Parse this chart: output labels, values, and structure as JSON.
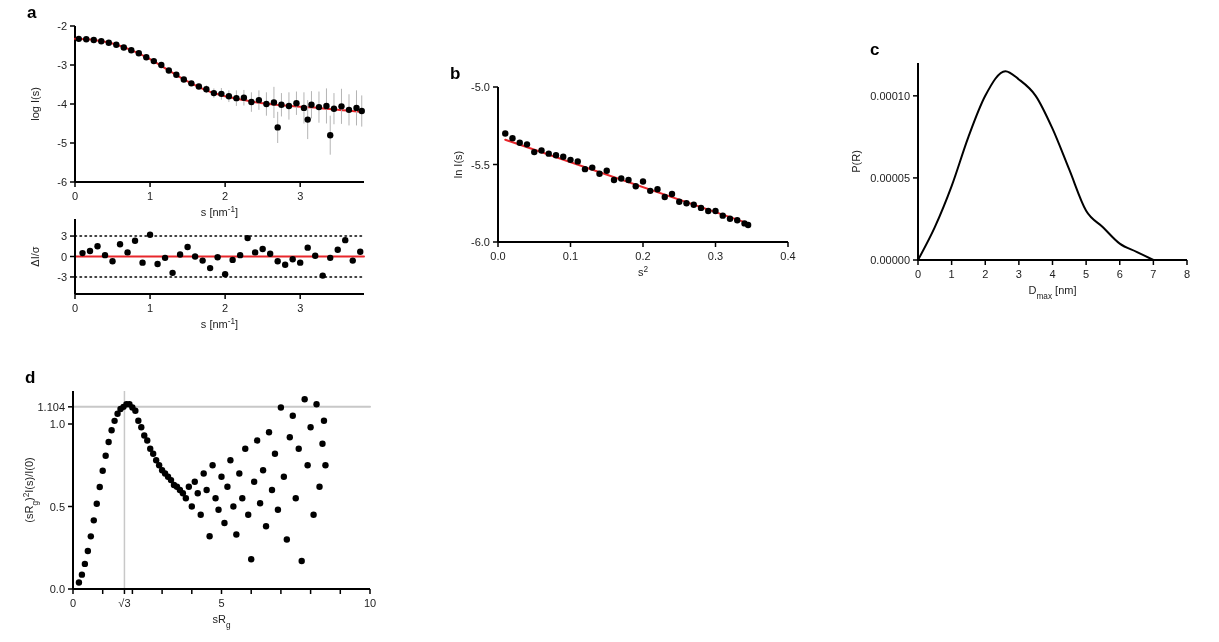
{
  "chart_data": [
    {
      "type": "scatter",
      "title": "a",
      "ylabel": "log I(s)",
      "xlabel": "s [nm$^{-1}$]",
      "xlim": [
        0,
        3.85
      ],
      "xticks": [
        0,
        1,
        2,
        3
      ],
      "ylim": [
        -6,
        -2
      ],
      "yticks": [
        -2,
        -3,
        -4,
        -5,
        -6
      ],
      "series": [
        {
          "marker": "circle",
          "color": "#000000",
          "x": [
            0.05,
            0.15,
            0.25,
            0.35,
            0.45,
            0.55,
            0.65,
            0.75,
            0.85,
            0.95,
            1.05,
            1.15,
            1.25,
            1.35,
            1.45,
            1.55,
            1.65,
            1.75,
            1.85,
            1.95,
            2.05,
            2.15,
            2.25,
            2.35,
            2.45,
            2.55,
            2.65,
            2.7,
            2.75,
            2.85,
            2.95,
            3.05,
            3.1,
            3.15,
            3.25,
            3.35,
            3.4,
            3.45,
            3.55,
            3.65,
            3.75,
            3.82
          ],
          "values": [
            -2.33,
            -2.34,
            -2.36,
            -2.39,
            -2.43,
            -2.48,
            -2.55,
            -2.62,
            -2.7,
            -2.8,
            -2.9,
            -3.0,
            -3.14,
            -3.25,
            -3.37,
            -3.47,
            -3.55,
            -3.62,
            -3.72,
            -3.74,
            -3.8,
            -3.85,
            -3.84,
            -3.95,
            -3.9,
            -4.0,
            -3.96,
            -4.6,
            -4.02,
            -4.05,
            -3.98,
            -4.1,
            -4.4,
            -4.02,
            -4.08,
            -4.05,
            -4.8,
            -4.12,
            -4.06,
            -4.15,
            -4.1,
            -4.18
          ],
          "errors": [
            null,
            null,
            null,
            null,
            null,
            null,
            null,
            null,
            null,
            null,
            null,
            null,
            null,
            null,
            null,
            null,
            null,
            0.1,
            0.12,
            0.15,
            0.15,
            0.2,
            0.2,
            0.25,
            0.25,
            0.3,
            0.4,
            0.4,
            0.3,
            0.35,
            0.3,
            0.4,
            0.5,
            0.35,
            0.4,
            0.45,
            0.5,
            0.4,
            0.45,
            0.4,
            0.45,
            0.4
          ]
        },
        {
          "type": "line",
          "marker": "none",
          "color": "#e8262b",
          "x": [
            0,
            0.25,
            0.5,
            0.75,
            1,
            1.25,
            1.5,
            1.75,
            2,
            2.25,
            2.5,
            2.75,
            3,
            3.25,
            3.5,
            3.82
          ],
          "values": [
            -2.33,
            -2.36,
            -2.45,
            -2.62,
            -2.85,
            -3.14,
            -3.42,
            -3.65,
            -3.8,
            -3.9,
            -3.98,
            -4.03,
            -4.07,
            -4.1,
            -4.15,
            -4.2
          ]
        }
      ]
    },
    {
      "type": "scatter",
      "ylabel": "ΔI/σ",
      "xlabel": "s [nm$^{-1}$]",
      "xlim": [
        0,
        3.85
      ],
      "xticks": [
        0,
        1,
        2,
        3
      ],
      "ylim": [
        -5.5,
        5.5
      ],
      "yticks": [
        3,
        0,
        -3
      ],
      "ref_lines": [
        {
          "axis": "y",
          "value": 3,
          "color": "#000000",
          "line_style": "dotted"
        },
        {
          "axis": "y",
          "value": -3,
          "color": "#000000",
          "line_style": "dotted"
        },
        {
          "axis": "y",
          "value": 0,
          "color": "#e8262b",
          "line_style": "solid"
        }
      ],
      "series": [
        {
          "marker": "circle",
          "color": "#000000",
          "x": [
            0.1,
            0.2,
            0.3,
            0.4,
            0.5,
            0.6,
            0.7,
            0.8,
            0.9,
            1.0,
            1.1,
            1.2,
            1.3,
            1.4,
            1.5,
            1.6,
            1.7,
            1.8,
            1.9,
            2.0,
            2.1,
            2.2,
            2.3,
            2.4,
            2.5,
            2.6,
            2.7,
            2.8,
            2.9,
            3.0,
            3.1,
            3.2,
            3.3,
            3.4,
            3.5,
            3.6,
            3.7,
            3.8
          ],
          "values": [
            0.5,
            0.8,
            1.5,
            0.2,
            -0.7,
            1.8,
            0.6,
            2.3,
            -0.9,
            3.2,
            -1.1,
            -0.2,
            -2.4,
            0.3,
            1.4,
            0.0,
            -0.6,
            -1.7,
            -0.1,
            -2.6,
            -0.5,
            0.2,
            2.7,
            0.6,
            1.1,
            0.4,
            -0.7,
            -1.2,
            -0.4,
            -0.9,
            1.3,
            0.1,
            -2.8,
            -0.2,
            1.0,
            2.4,
            -0.6,
            0.7
          ]
        }
      ]
    },
    {
      "type": "scatter",
      "title": "b",
      "ylabel": "ln I(s)",
      "xlabel": "s$^{2}$",
      "xlim": [
        0,
        0.4
      ],
      "xticks": [
        {
          "value": 0,
          "label": "0.0"
        },
        0.1,
        0.2,
        0.3,
        0.4
      ],
      "ylim": [
        -6,
        -5
      ],
      "yticks": [
        {
          "value": -5,
          "label": "-5.0"
        },
        -5.5,
        {
          "value": -6,
          "label": "-6.0"
        }
      ],
      "series": [
        {
          "marker": "circle",
          "color": "#000000",
          "x": [
            0.01,
            0.02,
            0.03,
            0.04,
            0.05,
            0.06,
            0.07,
            0.08,
            0.09,
            0.1,
            0.11,
            0.12,
            0.13,
            0.14,
            0.15,
            0.16,
            0.17,
            0.18,
            0.19,
            0.2,
            0.21,
            0.22,
            0.23,
            0.24,
            0.25,
            0.26,
            0.27,
            0.28,
            0.29,
            0.3,
            0.31,
            0.32,
            0.33,
            0.34,
            0.345
          ],
          "values": [
            -5.3,
            -5.33,
            -5.36,
            -5.37,
            -5.42,
            -5.41,
            -5.43,
            -5.44,
            -5.45,
            -5.47,
            -5.48,
            -5.53,
            -5.52,
            -5.56,
            -5.54,
            -5.6,
            -5.59,
            -5.6,
            -5.64,
            -5.61,
            -5.67,
            -5.66,
            -5.71,
            -5.69,
            -5.74,
            -5.75,
            -5.76,
            -5.78,
            -5.8,
            -5.8,
            -5.83,
            -5.85,
            -5.86,
            -5.88,
            -5.89
          ]
        },
        {
          "type": "line",
          "marker": "none",
          "color": "#e8262b",
          "x": [
            0.01,
            0.345
          ],
          "values": [
            -5.34,
            -5.88
          ]
        }
      ]
    },
    {
      "type": "line",
      "title": "c",
      "ylabel": "P(R)",
      "xlabel": "D$_{max}$ [nm]",
      "xlim": [
        0,
        8
      ],
      "xticks": [
        0,
        1,
        2,
        3,
        4,
        5,
        6,
        7,
        8
      ],
      "ylim": [
        0,
        0.00012
      ],
      "yticks": [
        {
          "value": 0,
          "label": "0.00000"
        },
        {
          "value": 5e-05,
          "label": "0.00005"
        },
        {
          "value": 0.0001,
          "label": "0.00010"
        }
      ],
      "series": [
        {
          "color": "#000000",
          "x": [
            0,
            0.5,
            1,
            1.5,
            2,
            2.6,
            3,
            3.5,
            4,
            4.5,
            5,
            5.5,
            6,
            6.5,
            7
          ],
          "values": [
            0,
            2e-05,
            4.5e-05,
            7.5e-05,
            0.0001,
            0.000115,
            0.00011,
            0.0001,
            8e-05,
            5.5e-05,
            3e-05,
            2e-05,
            1e-05,
            5e-06,
            0
          ]
        }
      ]
    },
    {
      "type": "scatter",
      "title": "d",
      "ylabel": "(sR$_{g}$)$^{2}$I(s)/I(0)",
      "xlabel": "sR$_{g}$",
      "xlim": [
        0,
        10
      ],
      "xticks": [
        0,
        {
          "value": 1,
          "label": null
        },
        {
          "value": 1.732,
          "label": null
        },
        {
          "value": 2,
          "label": null
        },
        {
          "value": 3,
          "label": null
        },
        {
          "value": 4,
          "label": null
        },
        5,
        {
          "value": 6,
          "label": null
        },
        {
          "value": 7,
          "label": null
        },
        {
          "value": 8,
          "label": null
        },
        {
          "value": 9,
          "label": null
        },
        10
      ],
      "ylim": [
        0,
        1.2
      ],
      "yticks": [
        {
          "value": 0,
          "label": "0.0"
        },
        {
          "value": 0.5,
          "label": "0.5"
        },
        {
          "value": 1,
          "label": "1.0"
        },
        1.104
      ],
      "ref_lines": [
        {
          "axis": "x",
          "value": 1.732,
          "label": "√3",
          "color": "#c8c8c8",
          "line_style": "solid"
        },
        {
          "axis": "y",
          "value": 1.104,
          "color": "#c8c8c8",
          "line_style": "solid"
        }
      ],
      "series": [
        {
          "marker": "circle",
          "color": "#000000",
          "x": [
            0.2,
            0.3,
            0.4,
            0.5,
            0.6,
            0.7,
            0.8,
            0.9,
            1.0,
            1.1,
            1.2,
            1.3,
            1.4,
            1.5,
            1.6,
            1.7,
            1.8,
            1.9,
            2.0,
            2.1,
            2.2,
            2.3,
            2.4,
            2.5,
            2.6,
            2.7,
            2.8,
            2.9,
            3.0,
            3.1,
            3.2,
            3.3,
            3.4,
            3.5,
            3.6,
            3.7,
            3.8,
            3.9,
            4.0,
            4.1,
            4.2,
            4.3,
            4.4,
            4.5,
            4.6,
            4.7,
            4.8,
            4.9,
            5.0,
            5.1,
            5.2,
            5.3,
            5.4,
            5.5,
            5.6,
            5.7,
            5.8,
            5.9,
            6.0,
            6.1,
            6.2,
            6.3,
            6.4,
            6.5,
            6.6,
            6.7,
            6.8,
            6.9,
            7.0,
            7.1,
            7.2,
            7.3,
            7.4,
            7.5,
            7.6,
            7.7,
            7.8,
            7.9,
            8.0,
            8.1,
            8.2,
            8.3,
            8.4,
            8.45,
            8.5
          ],
          "values": [
            0.039,
            0.087,
            0.152,
            0.23,
            0.319,
            0.416,
            0.517,
            0.618,
            0.717,
            0.808,
            0.891,
            0.962,
            1.019,
            1.062,
            1.091,
            1.104,
            1.12,
            1.12,
            1.1,
            1.08,
            1.02,
            0.98,
            0.93,
            0.9,
            0.85,
            0.82,
            0.78,
            0.75,
            0.72,
            0.7,
            0.68,
            0.66,
            0.63,
            0.62,
            0.6,
            0.58,
            0.55,
            0.62,
            0.5,
            0.65,
            0.58,
            0.45,
            0.7,
            0.6,
            0.32,
            0.75,
            0.55,
            0.48,
            0.68,
            0.4,
            0.62,
            0.78,
            0.5,
            0.33,
            0.7,
            0.55,
            0.85,
            0.45,
            0.18,
            0.65,
            0.9,
            0.52,
            0.72,
            0.38,
            0.95,
            0.6,
            0.82,
            0.48,
            1.1,
            0.68,
            0.3,
            0.92,
            1.05,
            0.55,
            0.85,
            0.17,
            1.15,
            0.75,
            0.98,
            0.45,
            1.12,
            0.62,
            0.88,
            1.02,
            0.75
          ]
        }
      ]
    }
  ]
}
